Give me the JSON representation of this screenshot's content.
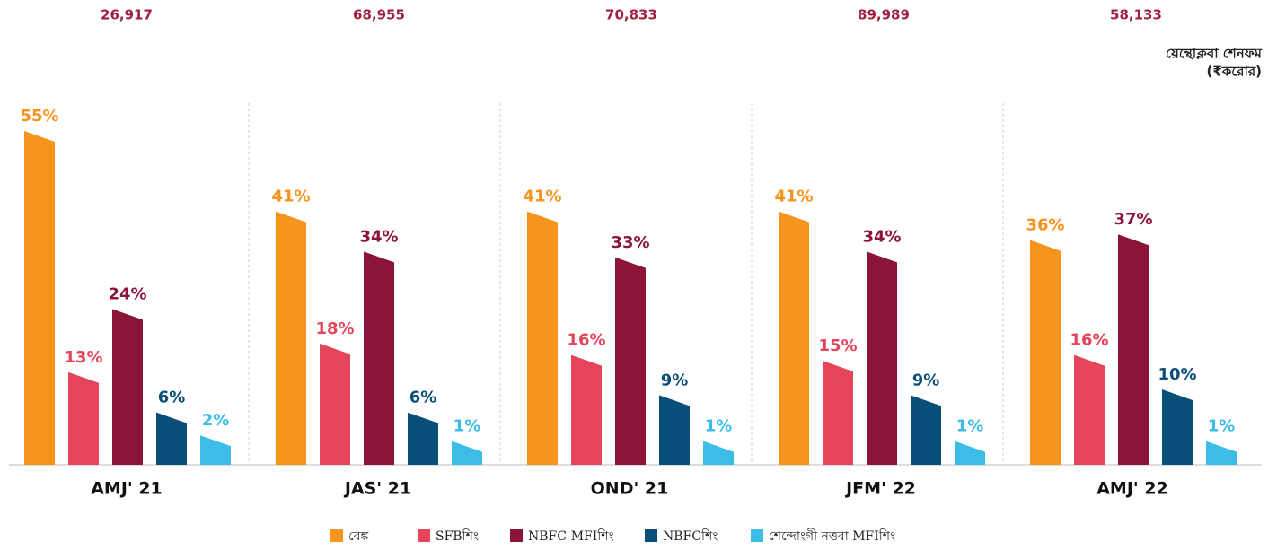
{
  "chart_data": {
    "type": "bar",
    "categories": [
      "AMJ' 21",
      "JAS' 21",
      "OND' 21",
      "JFM' 22",
      "AMJ' 22"
    ],
    "totals": {
      "title": [
        "য়েন্থোক্লবা শেনফম",
        "(₹করোর)"
      ],
      "values": [
        26917,
        68955,
        70833,
        89989,
        58133
      ],
      "value_labels": [
        "26,917",
        "68,955",
        "70,833",
        "89,989",
        "58,133"
      ]
    },
    "series": [
      {
        "name": "বেঙ্ক",
        "color": "#f7941d",
        "values": [
          55,
          41,
          41,
          41,
          36
        ],
        "value_labels": [
          "55%",
          "41%",
          "41%",
          "41%",
          "36%"
        ]
      },
      {
        "name": "SFBশিং",
        "color": "#e5455a",
        "values": [
          13,
          18,
          16,
          15,
          16
        ],
        "value_labels": [
          "13%",
          "18%",
          "16%",
          "15%",
          "16%"
        ]
      },
      {
        "name": "NBFC-MFIশিং",
        "color": "#8b1538",
        "values": [
          24,
          34,
          33,
          34,
          37
        ],
        "value_labels": [
          "24%",
          "34%",
          "33%",
          "34%",
          "37%"
        ]
      },
      {
        "name": "NBFCশিং",
        "color": "#0a4f7a",
        "values": [
          6,
          6,
          9,
          9,
          10
        ],
        "value_labels": [
          "6%",
          "6%",
          "9%",
          "9%",
          "10%"
        ]
      },
      {
        "name": "শেন্দোংগী নত্তবা MFIশিং",
        "color": "#3bbde8",
        "values": [
          2,
          1,
          1,
          1,
          1
        ],
        "value_labels": [
          "2%",
          "1%",
          "1%",
          "1%",
          "1%"
        ]
      }
    ]
  }
}
